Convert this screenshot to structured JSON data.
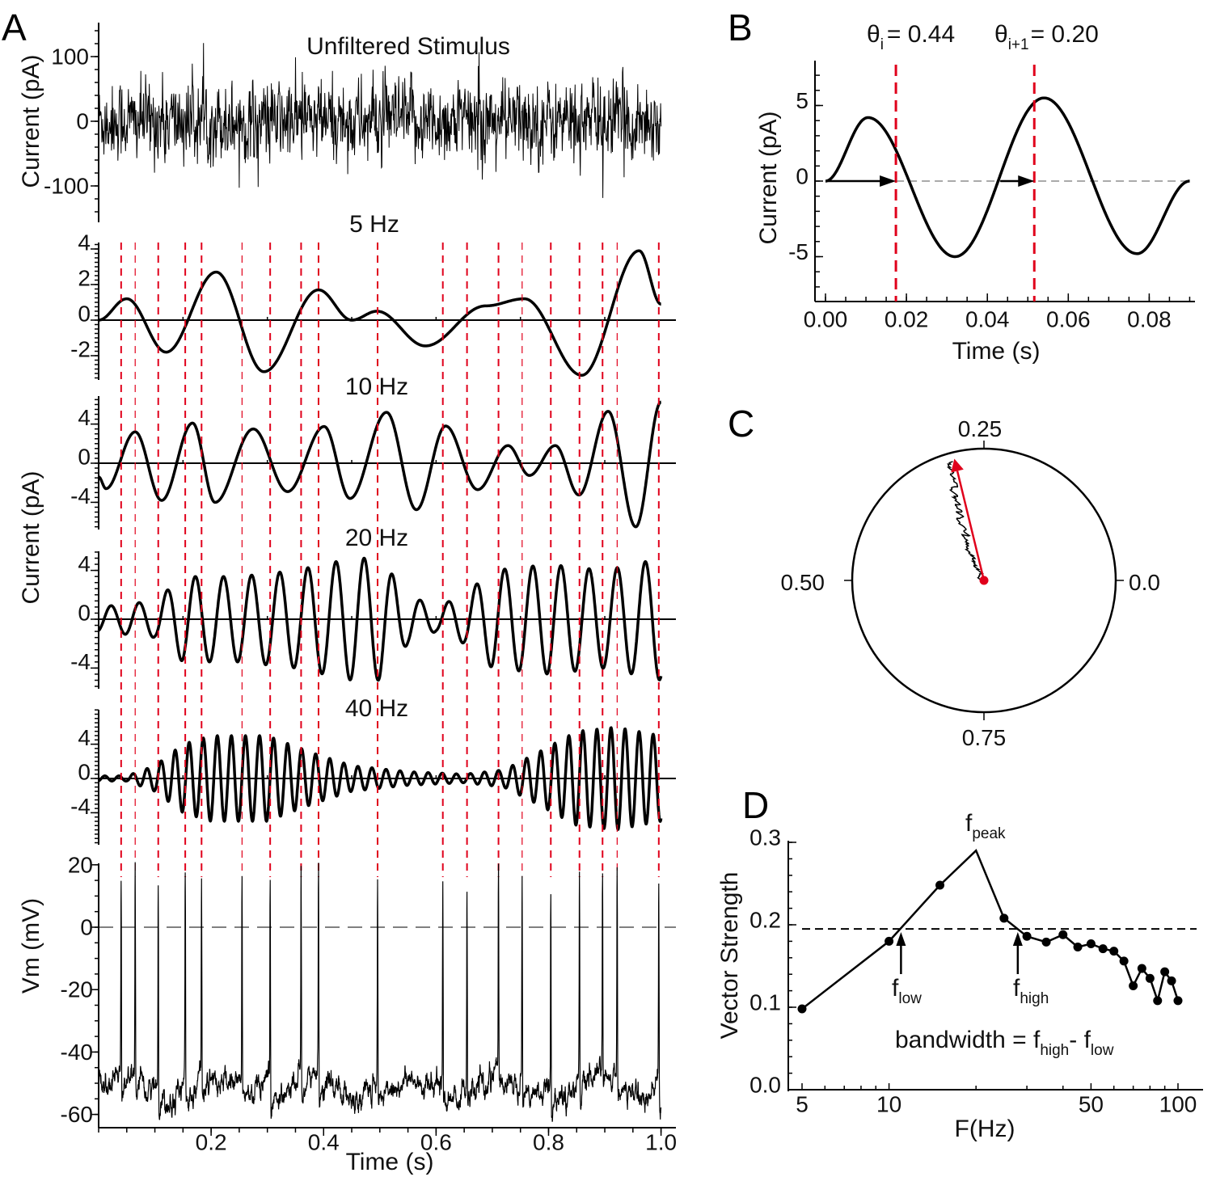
{
  "figure": {
    "panel_letters": [
      "A",
      "B",
      "C",
      "D"
    ]
  },
  "colors": {
    "trace": "#000000",
    "spike_marker": "#e0001b",
    "reference_dashed": "#aaaaaa"
  },
  "chart_data": [
    {
      "panel": "A",
      "type": "line",
      "title": "Unfiltered Stimulus",
      "ylabel": "Current (pA)",
      "yticks": [
        "100",
        "0",
        "-100"
      ],
      "ytick_values": [
        100,
        0,
        -100
      ],
      "ylim": [
        -156,
        152
      ],
      "xlim": [
        0,
        1.0
      ],
      "noise_sd_pA": 30
    },
    {
      "panel": "A",
      "type": "line",
      "title": "5 Hz",
      "yticks": [
        "4",
        "2",
        "0",
        "-2"
      ],
      "ytick_values": [
        4,
        2,
        0,
        -2
      ],
      "extrema": [
        [
          0,
          0
        ],
        [
          0.05,
          1.2
        ],
        [
          0.12,
          -1.8
        ],
        [
          0.209,
          2.7
        ],
        [
          0.294,
          -2.9
        ],
        [
          0.391,
          1.7
        ],
        [
          0.45,
          0.0
        ],
        [
          0.495,
          0.5
        ],
        [
          0.581,
          -1.45
        ],
        [
          0.688,
          0.8
        ],
        [
          0.757,
          1.2
        ],
        [
          0.859,
          -3.1
        ],
        [
          0.961,
          3.9
        ],
        [
          1.0,
          0.9
        ]
      ]
    },
    {
      "panel": "A",
      "type": "line",
      "title": "10 Hz",
      "ylabel": "Current (pA)",
      "yticks": [
        "4",
        "0",
        "-4"
      ],
      "ytick_values": [
        4,
        0,
        -4
      ],
      "extrema": [
        [
          0,
          -1.4
        ],
        [
          0.013,
          -2.6
        ],
        [
          0.065,
          3.2
        ],
        [
          0.112,
          -3.8
        ],
        [
          0.167,
          4.1
        ],
        [
          0.207,
          -4.0
        ],
        [
          0.275,
          3.5
        ],
        [
          0.336,
          -2.9
        ],
        [
          0.401,
          3.75
        ],
        [
          0.447,
          -3.6
        ],
        [
          0.512,
          5.2
        ],
        [
          0.565,
          -4.75
        ],
        [
          0.617,
          3.8
        ],
        [
          0.674,
          -2.7
        ],
        [
          0.728,
          1.8
        ],
        [
          0.766,
          -1.25
        ],
        [
          0.812,
          1.8
        ],
        [
          0.854,
          -3.25
        ],
        [
          0.906,
          5.3
        ],
        [
          0.955,
          -6.5
        ],
        [
          1.0,
          6.25
        ]
      ]
    },
    {
      "panel": "A",
      "type": "line",
      "title": "20 Hz",
      "frequency_hz": 20,
      "yticks": [
        "4",
        "0",
        "-4"
      ],
      "ytick_values": [
        4,
        0,
        -4
      ],
      "envelope": [
        [
          0,
          1
        ],
        [
          0.1,
          1.5
        ],
        [
          0.15,
          3.5
        ],
        [
          0.25,
          3.5
        ],
        [
          0.35,
          4
        ],
        [
          0.45,
          5
        ],
        [
          0.5,
          5
        ],
        [
          0.55,
          2
        ],
        [
          0.6,
          1
        ],
        [
          0.65,
          2
        ],
        [
          0.7,
          4
        ],
        [
          0.8,
          4.5
        ],
        [
          0.9,
          4
        ],
        [
          1.0,
          5
        ]
      ]
    },
    {
      "panel": "A",
      "type": "line",
      "title": "40 Hz",
      "frequency_hz": 40,
      "yticks": [
        "4",
        "0",
        "-4"
      ],
      "ytick_values": [
        4,
        0,
        -4
      ],
      "envelope": [
        [
          0,
          0.3
        ],
        [
          0.05,
          0.3
        ],
        [
          0.1,
          1.5
        ],
        [
          0.15,
          4
        ],
        [
          0.2,
          5
        ],
        [
          0.3,
          5
        ],
        [
          0.38,
          3
        ],
        [
          0.45,
          1.5
        ],
        [
          0.55,
          0.8
        ],
        [
          0.65,
          0.5
        ],
        [
          0.72,
          1
        ],
        [
          0.78,
          3
        ],
        [
          0.85,
          5.5
        ],
        [
          0.92,
          6
        ],
        [
          1.0,
          5
        ]
      ]
    },
    {
      "panel": "A",
      "type": "line",
      "ylabel": "Vm (mV)",
      "xlabel": "Time (s)",
      "yticks": [
        "20",
        "0",
        "-20",
        "-40",
        "-60"
      ],
      "ytick_values": [
        20,
        0,
        -20,
        -40,
        -60
      ],
      "xticks": [
        "0.2",
        "0.4",
        "0.6",
        "0.8",
        "1.0"
      ],
      "xtick_values": [
        0.2,
        0.4,
        0.6,
        0.8,
        1.0
      ],
      "reference_line_mV": 0,
      "baseline_mV": -52,
      "spike_peak_mV": 16,
      "spike_times_s": [
        0.04,
        0.065,
        0.106,
        0.154,
        0.183,
        0.255,
        0.305,
        0.36,
        0.391,
        0.496,
        0.612,
        0.655,
        0.711,
        0.753,
        0.804,
        0.855,
        0.896,
        0.922,
        0.996
      ]
    },
    {
      "panel": "B",
      "type": "line",
      "xlabel": "Time (s)",
      "ylabel": "Current (pA)",
      "xticks": [
        "0.00",
        "0.02",
        "0.04",
        "0.06",
        "0.08"
      ],
      "xtick_values": [
        0,
        0.02,
        0.04,
        0.06,
        0.08
      ],
      "yticks": [
        "5",
        "0",
        "-5"
      ],
      "ytick_values": [
        5,
        0,
        -5
      ],
      "xlim": [
        0,
        0.09
      ],
      "ylim": [
        -8,
        8
      ],
      "extrema": [
        [
          0,
          0
        ],
        [
          0.0105,
          4.2
        ],
        [
          0.032,
          -5.0
        ],
        [
          0.054,
          5.5
        ],
        [
          0.077,
          -4.8
        ],
        [
          0.09,
          0
        ]
      ],
      "spike_times_s": [
        0.0174,
        0.0516
      ],
      "annotations": [
        {
          "symbol": "θ",
          "sub": "i",
          "text": "= 0.44"
        },
        {
          "symbol": "θ",
          "sub": "i+1",
          "text": "= 0.20"
        }
      ]
    },
    {
      "panel": "C",
      "type": "polar",
      "angle_labels": {
        "top": "0.25",
        "left": "0.50",
        "right": "0.0",
        "bottom": "0.75"
      },
      "mean_vector": {
        "phase": 0.288,
        "length": 0.95
      }
    },
    {
      "panel": "D",
      "type": "line",
      "xscale": "log",
      "xlabel": "F(Hz)",
      "ylabel": "Vector Strength",
      "xticks": [
        "5",
        "10",
        "50",
        "100"
      ],
      "xtick_values": [
        5,
        10,
        50,
        100
      ],
      "yticks": [
        "0.3",
        "0.2",
        "0.1",
        "0.0"
      ],
      "ytick_values": [
        0.3,
        0.2,
        0.1,
        0.0
      ],
      "ylim": [
        0,
        0.3
      ],
      "xlim": [
        5,
        100
      ],
      "x": [
        5,
        10,
        15,
        20,
        25,
        30,
        35,
        40,
        45,
        50,
        55,
        60,
        65,
        70,
        75,
        80,
        85,
        90,
        95,
        100
      ],
      "y": [
        0.098,
        0.18,
        0.248,
        0.29,
        0.208,
        0.186,
        0.179,
        0.188,
        0.173,
        0.177,
        0.171,
        0.168,
        0.156,
        0.126,
        0.147,
        0.135,
        0.108,
        0.143,
        0.132,
        0.108
      ],
      "marker_hidden_at": [
        20
      ],
      "threshold": 0.195,
      "f_low": 11.0,
      "f_high": 27.9,
      "labels": {
        "f": "f",
        "peak": "peak",
        "low": "low",
        "high": "high",
        "bandwidth_prefix": "bandwidth = ",
        "minus": "- "
      }
    }
  ]
}
